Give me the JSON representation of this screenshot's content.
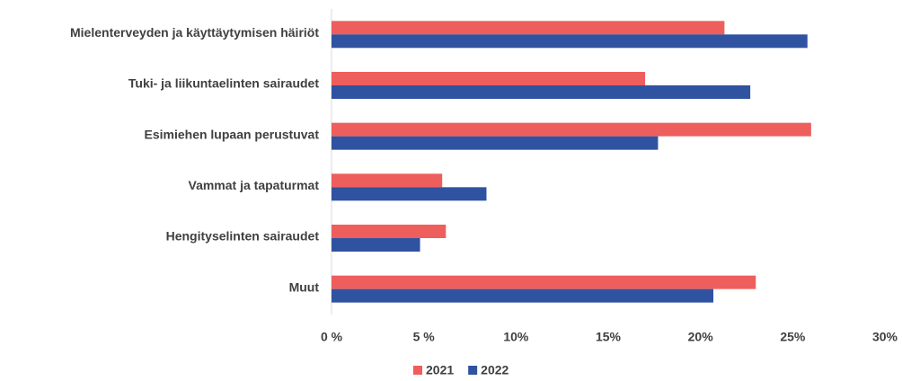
{
  "chart_data": {
    "type": "hbar",
    "categories": [
      "Mielenterveyden ja käyttäytymisen häiriöt",
      "Tuki- ja liikuntaelinten sairaudet",
      "Esimiehen lupaan perustuvat",
      "Vammat ja tapaturmat",
      "Hengityselinten sairaudet",
      "Muut"
    ],
    "series": [
      {
        "name": "2021",
        "color": "#ee5e5c",
        "values": [
          21.3,
          17.0,
          26.0,
          6.0,
          6.2,
          23.0
        ]
      },
      {
        "name": "2022",
        "color": "#2f53a1",
        "values": [
          25.8,
          22.7,
          17.7,
          8.4,
          4.8,
          20.7
        ]
      }
    ],
    "xlim": [
      0,
      30
    ],
    "xticks": [
      {
        "value": 0,
        "label": "0 %"
      },
      {
        "value": 5,
        "label": "5 %"
      },
      {
        "value": 10,
        "label": "10%"
      },
      {
        "value": 15,
        "label": "15%"
      },
      {
        "value": 20,
        "label": "20%"
      },
      {
        "value": 25,
        "label": "25%"
      },
      {
        "value": 30,
        "label": "30%"
      }
    ],
    "legend": "bottom"
  }
}
